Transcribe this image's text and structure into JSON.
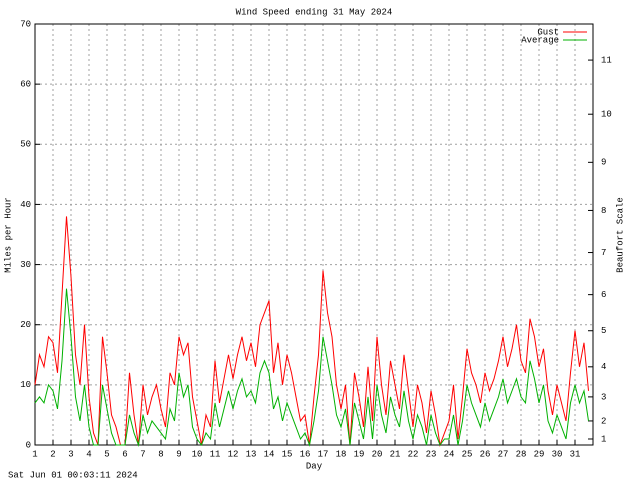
{
  "chart_data": {
    "type": "line",
    "title": "Wind Speed ending 31 May 2024",
    "x_label": "Day",
    "y_label": "Miles per Hour",
    "y2_label": "Beaufort Scale",
    "footer": "Sat Jun 01 00:03:11 2024",
    "grid": true,
    "legend": "top-right",
    "xlim": [
      1,
      32
    ],
    "xticks": [
      1,
      2,
      3,
      4,
      5,
      6,
      7,
      8,
      9,
      10,
      11,
      12,
      13,
      14,
      15,
      16,
      17,
      18,
      19,
      20,
      21,
      22,
      23,
      24,
      25,
      26,
      27,
      28,
      29,
      30,
      31
    ],
    "ylim": [
      0,
      70
    ],
    "yticks": [
      0,
      10,
      20,
      30,
      40,
      50,
      60,
      70
    ],
    "y2lim": [
      0,
      70
    ],
    "y2ticks": [
      1,
      {
        "value": 4,
        "label": "2"
      },
      {
        "value": 8,
        "label": "3"
      },
      {
        "value": 13,
        "label": "4"
      },
      {
        "value": 19,
        "label": "5"
      },
      {
        "value": 25,
        "label": "6"
      },
      {
        "value": 32,
        "label": "7"
      },
      {
        "value": 39,
        "label": "8"
      },
      {
        "value": 47,
        "label": "9"
      },
      {
        "value": 55,
        "label": "10"
      },
      {
        "value": 64,
        "label": "11"
      }
    ],
    "x": [
      1,
      1.25,
      1.5,
      1.75,
      2,
      2.25,
      2.5,
      2.75,
      3,
      3.25,
      3.5,
      3.75,
      4,
      4.25,
      4.5,
      4.75,
      5,
      5.25,
      5.5,
      5.75,
      6,
      6.25,
      6.5,
      6.75,
      7,
      7.25,
      7.5,
      7.75,
      8,
      8.25,
      8.5,
      8.75,
      9,
      9.25,
      9.5,
      9.75,
      10,
      10.25,
      10.5,
      10.75,
      11,
      11.25,
      11.5,
      11.75,
      12,
      12.25,
      12.5,
      12.75,
      13,
      13.25,
      13.5,
      13.75,
      14,
      14.25,
      14.5,
      14.75,
      15,
      15.25,
      15.5,
      15.75,
      16,
      16.25,
      16.5,
      16.75,
      17,
      17.25,
      17.5,
      17.75,
      18,
      18.25,
      18.5,
      18.75,
      19,
      19.25,
      19.5,
      19.75,
      20,
      20.25,
      20.5,
      20.75,
      21,
      21.25,
      21.5,
      21.75,
      22,
      22.25,
      22.5,
      22.75,
      23,
      23.25,
      23.5,
      23.75,
      24,
      24.25,
      24.5,
      24.75,
      25,
      25.25,
      25.5,
      25.75,
      26,
      26.25,
      26.5,
      26.75,
      27,
      27.25,
      27.5,
      27.75,
      28,
      28.25,
      28.5,
      28.75,
      29,
      29.25,
      29.5,
      29.75,
      30,
      30.25,
      30.5,
      30.75,
      31,
      31.25,
      31.5,
      31.75
    ],
    "series": [
      {
        "name": "Gust",
        "color": "#ff0000",
        "values": [
          10,
          15,
          13,
          18,
          17,
          12,
          25,
          38,
          28,
          15,
          10,
          20,
          8,
          2,
          0,
          18,
          12,
          5,
          3,
          0,
          0,
          12,
          5,
          0,
          10,
          5,
          8,
          10,
          6,
          3,
          12,
          10,
          18,
          15,
          17,
          8,
          4,
          0,
          5,
          3,
          14,
          7,
          11,
          15,
          11,
          15,
          18,
          14,
          17,
          13,
          20,
          22,
          24,
          12,
          17,
          10,
          15,
          12,
          8,
          4,
          5,
          0,
          8,
          15,
          29,
          22,
          18,
          10,
          6,
          10,
          0,
          12,
          8,
          3,
          13,
          4,
          18,
          10,
          5,
          14,
          10,
          6,
          15,
          9,
          3,
          10,
          7,
          2,
          9,
          5,
          0,
          2,
          4,
          10,
          1,
          8,
          16,
          12,
          10,
          7,
          12,
          9,
          11,
          14,
          18,
          13,
          16,
          20,
          14,
          12,
          21,
          18,
          13,
          16,
          9,
          5,
          10,
          7,
          4,
          12,
          19,
          13,
          17,
          9
        ]
      },
      {
        "name": "Average",
        "color": "#00b000",
        "values": [
          7,
          8,
          7,
          10,
          9,
          6,
          14,
          26,
          18,
          8,
          4,
          10,
          3,
          0,
          0,
          10,
          6,
          2,
          0,
          0,
          0,
          5,
          2,
          0,
          5,
          2,
          4,
          3,
          2,
          1,
          6,
          4,
          12,
          8,
          10,
          3,
          1,
          0,
          2,
          1,
          7,
          3,
          6,
          9,
          6,
          9,
          11,
          8,
          9,
          7,
          12,
          14,
          12,
          6,
          8,
          4,
          7,
          5,
          3,
          1,
          2,
          0,
          4,
          9,
          18,
          14,
          10,
          5,
          3,
          6,
          0,
          7,
          4,
          1,
          8,
          1,
          10,
          5,
          2,
          8,
          5,
          3,
          9,
          4,
          1,
          5,
          3,
          0,
          5,
          2,
          0,
          1,
          1,
          5,
          0,
          4,
          10,
          7,
          5,
          3,
          7,
          4,
          6,
          8,
          11,
          7,
          9,
          11,
          8,
          7,
          14,
          11,
          7,
          10,
          4,
          2,
          5,
          3,
          1,
          7,
          10,
          7,
          9,
          4
        ]
      }
    ]
  }
}
